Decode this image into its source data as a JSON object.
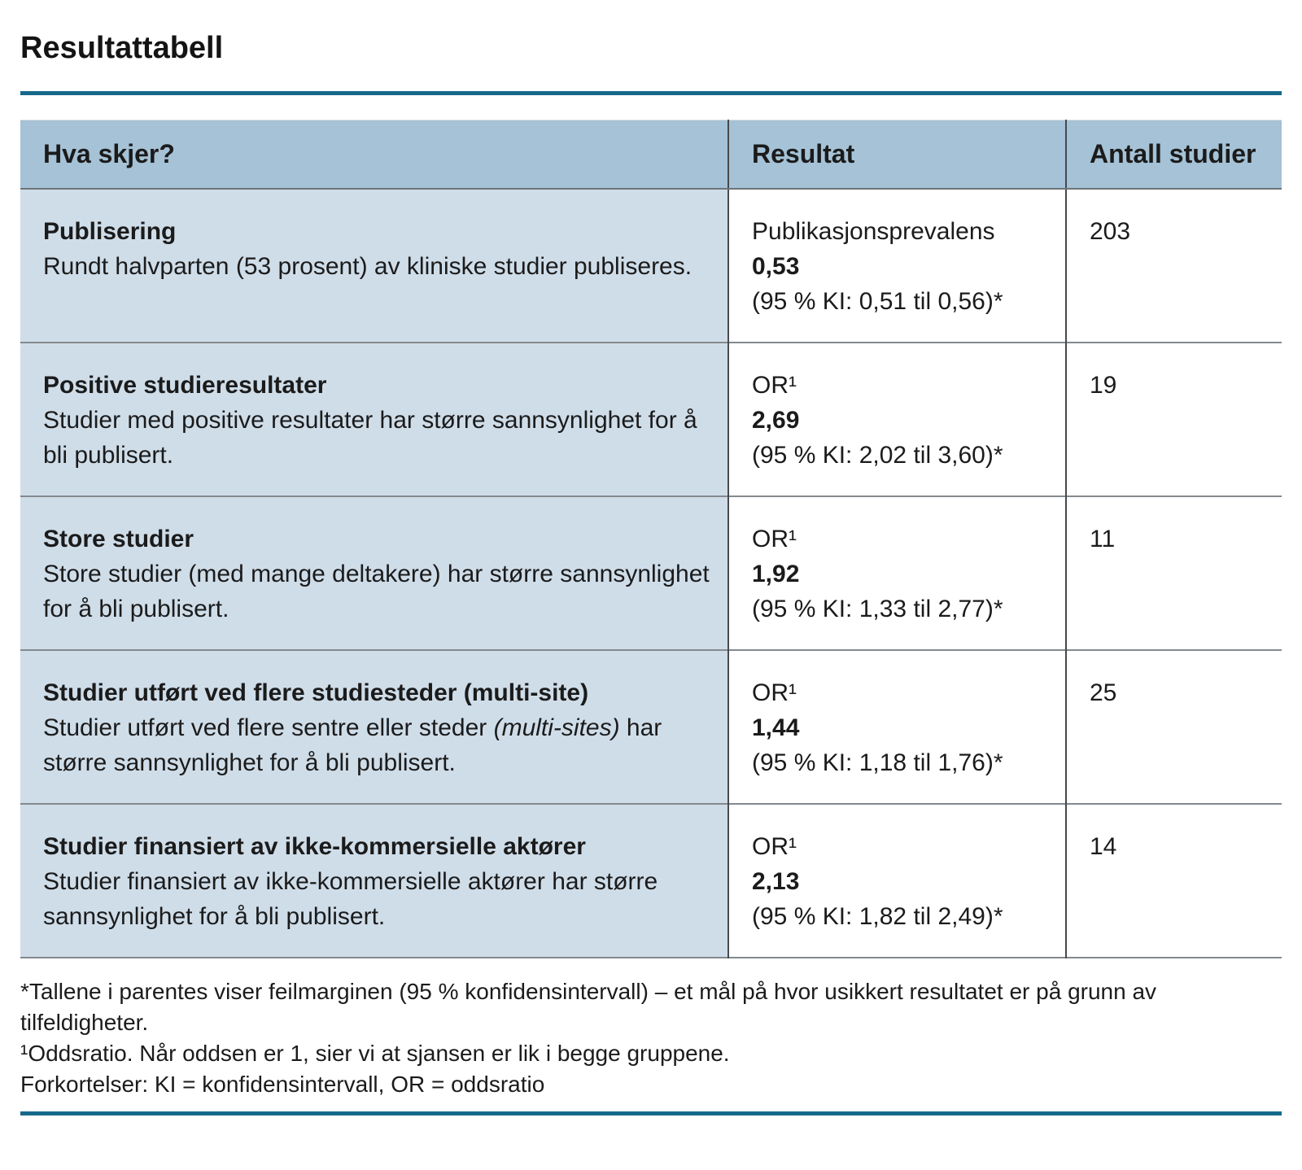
{
  "page": {
    "title": "Resultattabell"
  },
  "colors": {
    "accent": "#17698a",
    "header_bg": "#a5c2d6",
    "row_bg": "#cfdde9"
  },
  "table": {
    "headers": {
      "what": "Hva skjer?",
      "result": "Resultat",
      "count": "Antall studier"
    },
    "rows": [
      {
        "title": "Publisering",
        "desc_pre": "Rundt halvparten (53 prosent) av kliniske studier publiseres.",
        "desc_italic": "",
        "desc_post": "",
        "result_label": "Publikasjonsprevalens",
        "result_value": "0,53",
        "result_ci": "(95 % KI: 0,51 til 0,56)*",
        "count": "203"
      },
      {
        "title": "Positive studieresultater",
        "desc_pre": "Studier med positive resultater har større sannsynlighet for å bli publisert.",
        "desc_italic": "",
        "desc_post": "",
        "result_label": "OR¹",
        "result_value": "2,69",
        "result_ci": "(95 % KI: 2,02 til 3,60)*",
        "count": "19"
      },
      {
        "title": "Store studier",
        "desc_pre": "Store studier (med mange deltakere) har større sannsynlighet for å bli publisert.",
        "desc_italic": "",
        "desc_post": "",
        "result_label": "OR¹",
        "result_value": "1,92",
        "result_ci": "(95 % KI: 1,33 til 2,77)*",
        "count": "11"
      },
      {
        "title": "Studier utført ved flere studiesteder (multi-site)",
        "desc_pre": "Studier utført ved flere sentre eller steder ",
        "desc_italic": "(multi-sites)",
        "desc_post": " har større sannsynlighet for å bli publisert.",
        "result_label": "OR¹",
        "result_value": "1,44",
        "result_ci": "(95 % KI: 1,18 til 1,76)*",
        "count": "25"
      },
      {
        "title": "Studier finansiert av ikke-kommersielle aktører",
        "desc_pre": "Studier finansiert av ikke-kommersielle aktører har større sannsynlighet for å bli publisert.",
        "desc_italic": "",
        "desc_post": "",
        "result_label": "OR¹",
        "result_value": "2,13",
        "result_ci": "(95 % KI: 1,82 til 2,49)*",
        "count": "14"
      }
    ]
  },
  "footnotes": [
    "*Tallene i parentes viser feilmarginen (95 % konfidensintervall) – et mål på hvor usikkert resultatet er på grunn av tilfeldigheter.",
    "¹Oddsratio. Når oddsen er 1, sier vi at sjansen er lik i begge gruppene.",
    "Forkortelser: KI = konfidensintervall, OR = oddsratio"
  ]
}
